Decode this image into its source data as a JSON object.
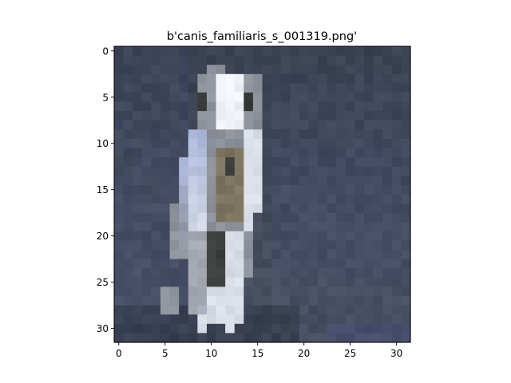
{
  "chart_data": {
    "type": "heatmap",
    "title": "b'canis_familiaris_s_001319.png'",
    "xlabel": "",
    "ylabel": "",
    "image_size": [
      32,
      32
    ],
    "xlim": [
      -0.5,
      31.5
    ],
    "ylim": [
      31.5,
      -0.5
    ],
    "x_ticks": [
      0,
      5,
      10,
      15,
      20,
      25,
      30
    ],
    "y_ticks": [
      0,
      5,
      10,
      15,
      20,
      25,
      30
    ],
    "x_tick_labels": [
      "0",
      "5",
      "10",
      "15",
      "20",
      "25",
      "30"
    ],
    "y_tick_labels": [
      "0",
      "5",
      "10",
      "15",
      "20",
      "25",
      "30"
    ],
    "grid": false,
    "colors": {
      "background_top": "#3a4150",
      "background_bottom": "#4a5264",
      "background_blue": "#474f78",
      "floor_dark": "#2e3544",
      "dog_light": "#d8dde6",
      "dog_white": "#eef1f5",
      "dog_blue": "#a9b5d8",
      "dog_brown": "#7d7560",
      "dog_dark": "#3b3d3c",
      "dog_grey": "#8e929a"
    }
  }
}
